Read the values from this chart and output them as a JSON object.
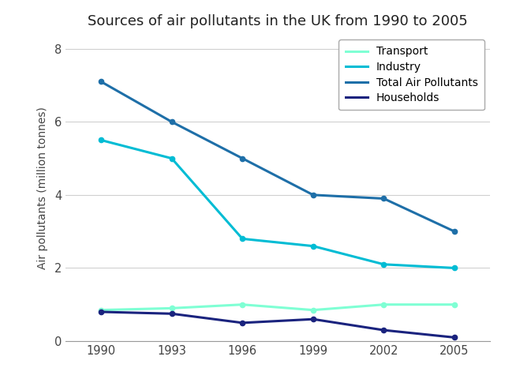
{
  "title": "Sources of air pollutants in the UK from 1990 to 2005",
  "ylabel": "Air pollutants (million tonnes)",
  "years": [
    1990,
    1993,
    1996,
    1999,
    2002,
    2005
  ],
  "series": {
    "Transport": {
      "values": [
        0.85,
        0.9,
        1.0,
        0.85,
        1.0,
        1.0
      ],
      "color": "#7fffd4",
      "linewidth": 2.2
    },
    "Industry": {
      "values": [
        5.5,
        5.0,
        2.8,
        2.6,
        2.1,
        2.0
      ],
      "color": "#00bcd4",
      "linewidth": 2.2
    },
    "Total Air Pollutants": {
      "values": [
        7.1,
        6.0,
        5.0,
        4.0,
        3.9,
        3.0
      ],
      "color": "#1e6fa8",
      "linewidth": 2.2
    },
    "Households": {
      "values": [
        0.8,
        0.75,
        0.5,
        0.6,
        0.3,
        0.1
      ],
      "color": "#1a237e",
      "linewidth": 2.2
    }
  },
  "ylim": [
    0,
    8.4
  ],
  "yticks": [
    0,
    2,
    4,
    6,
    8
  ],
  "ytick_labels": [
    "0",
    "2",
    "4",
    "6",
    "8"
  ],
  "xticks": [
    1990,
    1993,
    1996,
    1999,
    2002,
    2005
  ],
  "legend_order": [
    "Transport",
    "Industry",
    "Total Air Pollutants",
    "Households"
  ],
  "background_color": "#ffffff",
  "grid_color": "#d0d0d0",
  "title_fontsize": 13,
  "label_fontsize": 10,
  "tick_fontsize": 10.5,
  "legend_fontsize": 10,
  "marker_size": 4.5
}
